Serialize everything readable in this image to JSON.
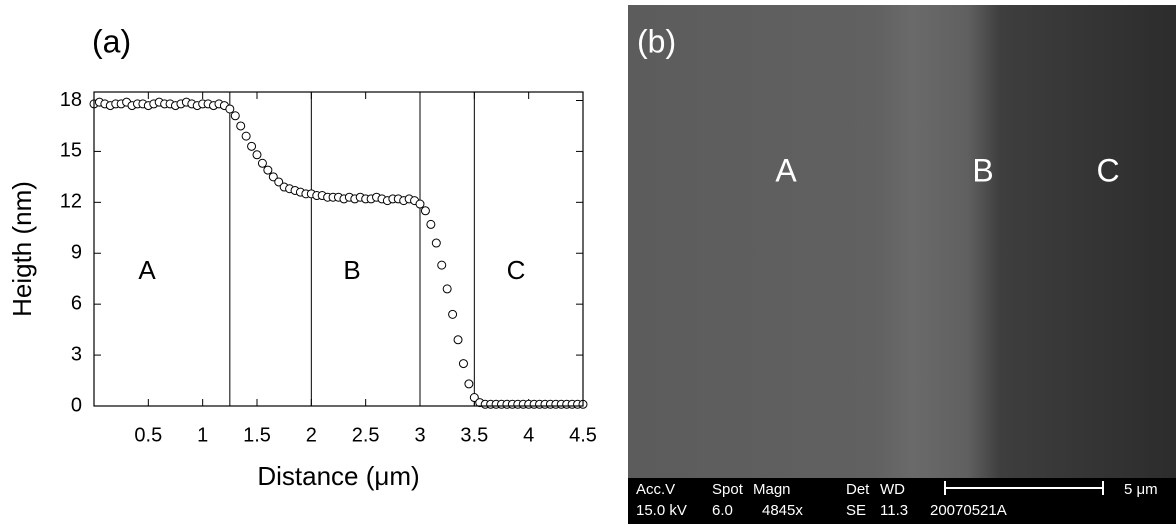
{
  "chart_data": {
    "type": "scatter",
    "panel_label": "(a)",
    "xlabel": "Distance (μm)",
    "ylabel": "Heigth (nm)",
    "xlim": [
      0,
      4.5
    ],
    "ylim": [
      0,
      18.5
    ],
    "xticks": [
      0.5,
      1,
      1.5,
      2,
      2.5,
      3,
      3.5,
      4,
      4.5
    ],
    "yticks": [
      0,
      3,
      6,
      9,
      12,
      15,
      18
    ],
    "vlines": [
      1.25,
      2,
      3,
      3.5
    ],
    "annotations": [
      "A",
      "B",
      "C"
    ],
    "color": "#000000",
    "x": [
      0,
      0.05,
      0.1,
      0.15,
      0.2,
      0.25,
      0.3,
      0.35,
      0.4,
      0.45,
      0.5,
      0.55,
      0.6,
      0.65,
      0.7,
      0.75,
      0.8,
      0.85,
      0.9,
      0.95,
      1,
      1.05,
      1.1,
      1.15,
      1.2,
      1.25,
      1.3,
      1.35,
      1.4,
      1.45,
      1.5,
      1.55,
      1.6,
      1.65,
      1.7,
      1.75,
      1.8,
      1.85,
      1.9,
      1.95,
      2,
      2.05,
      2.1,
      2.15,
      2.2,
      2.25,
      2.3,
      2.35,
      2.4,
      2.45,
      2.5,
      2.55,
      2.6,
      2.65,
      2.7,
      2.75,
      2.8,
      2.85,
      2.9,
      2.95,
      3,
      3.05,
      3.1,
      3.15,
      3.2,
      3.25,
      3.3,
      3.35,
      3.4,
      3.45,
      3.5,
      3.55,
      3.6,
      3.65,
      3.7,
      3.75,
      3.8,
      3.85,
      3.9,
      3.95,
      4,
      4.05,
      4.1,
      4.15,
      4.2,
      4.25,
      4.3,
      4.35,
      4.4,
      4.45,
      4.5
    ],
    "values": [
      17.8,
      17.9,
      17.8,
      17.7,
      17.8,
      17.8,
      17.9,
      17.7,
      17.8,
      17.8,
      17.7,
      17.8,
      17.9,
      17.8,
      17.8,
      17.7,
      17.8,
      17.9,
      17.8,
      17.7,
      17.8,
      17.8,
      17.7,
      17.8,
      17.7,
      17.5,
      17.1,
      16.5,
      15.9,
      15.3,
      14.8,
      14.3,
      13.9,
      13.5,
      13.2,
      12.9,
      12.8,
      12.7,
      12.6,
      12.5,
      12.5,
      12.4,
      12.4,
      12.3,
      12.3,
      12.3,
      12.2,
      12.3,
      12.2,
      12.3,
      12.2,
      12.2,
      12.3,
      12.2,
      12.1,
      12.2,
      12.2,
      12.1,
      12.2,
      12.1,
      11.9,
      11.5,
      10.7,
      9.6,
      8.3,
      6.9,
      5.4,
      3.9,
      2.5,
      1.3,
      0.5,
      0.2,
      0.1,
      0.1,
      0.1,
      0.1,
      0.1,
      0.1,
      0.1,
      0.1,
      0.1,
      0.1,
      0.1,
      0.1,
      0.1,
      0.1,
      0.1,
      0.1,
      0.1,
      0.1,
      0.1
    ]
  },
  "image": {
    "panel_label": "(b)",
    "regions": [
      "A",
      "B",
      "C"
    ],
    "footer": {
      "row1": [
        "Acc.V",
        "Spot",
        "Magn",
        "Det",
        "WD"
      ],
      "row2": [
        "15.0 kV",
        "6.0",
        "4845x",
        "SE",
        "11.3",
        "20070521A"
      ],
      "scale": "5 μm"
    }
  }
}
